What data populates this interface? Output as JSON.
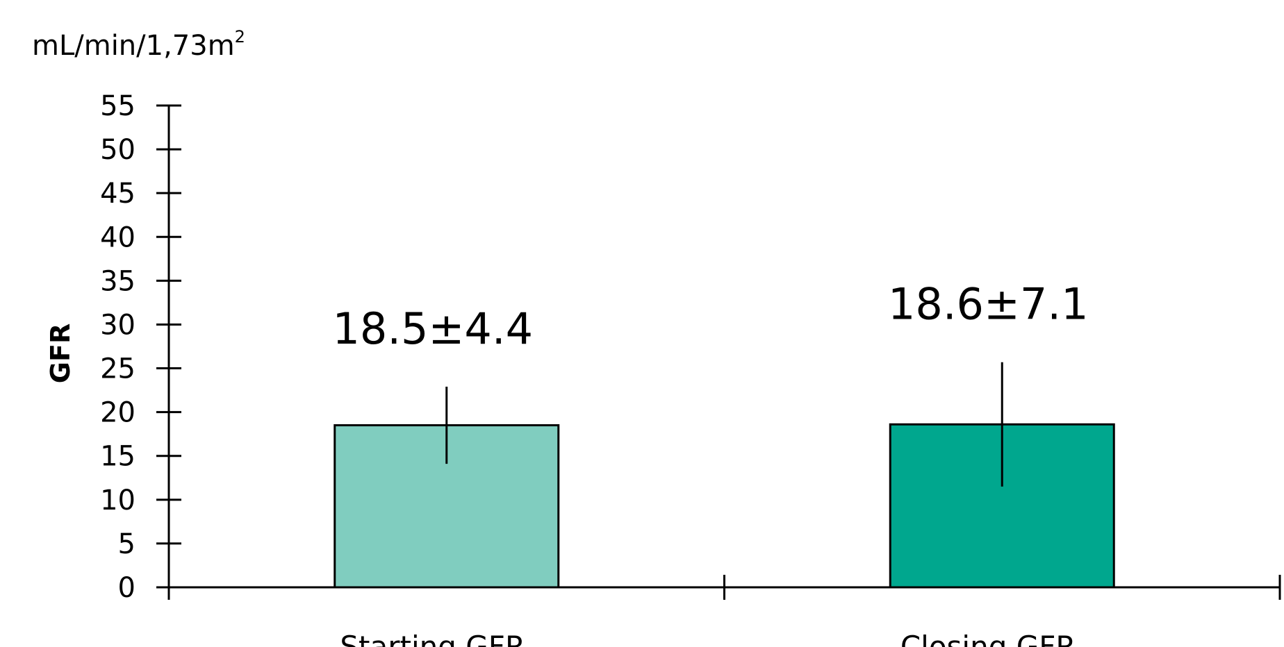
{
  "chart_data": {
    "type": "bar",
    "unit_label": "mL/min/1,73m",
    "unit_superscript": "2",
    "ylabel": "GFR",
    "xlabel": "",
    "categories": [
      "Starting GFR",
      "Closing GFR"
    ],
    "values": [
      18.5,
      18.6
    ],
    "errors": [
      4.4,
      7.1
    ],
    "value_labels": [
      "18.5±4.4",
      "18.6±7.1"
    ],
    "bar_colors": [
      "#80cdbf",
      "#00a78e"
    ],
    "ylim": [
      0,
      55
    ],
    "yticks": [
      0,
      5,
      10,
      15,
      20,
      25,
      30,
      35,
      40,
      45,
      50,
      55
    ],
    "grid": false,
    "legend": "none"
  }
}
